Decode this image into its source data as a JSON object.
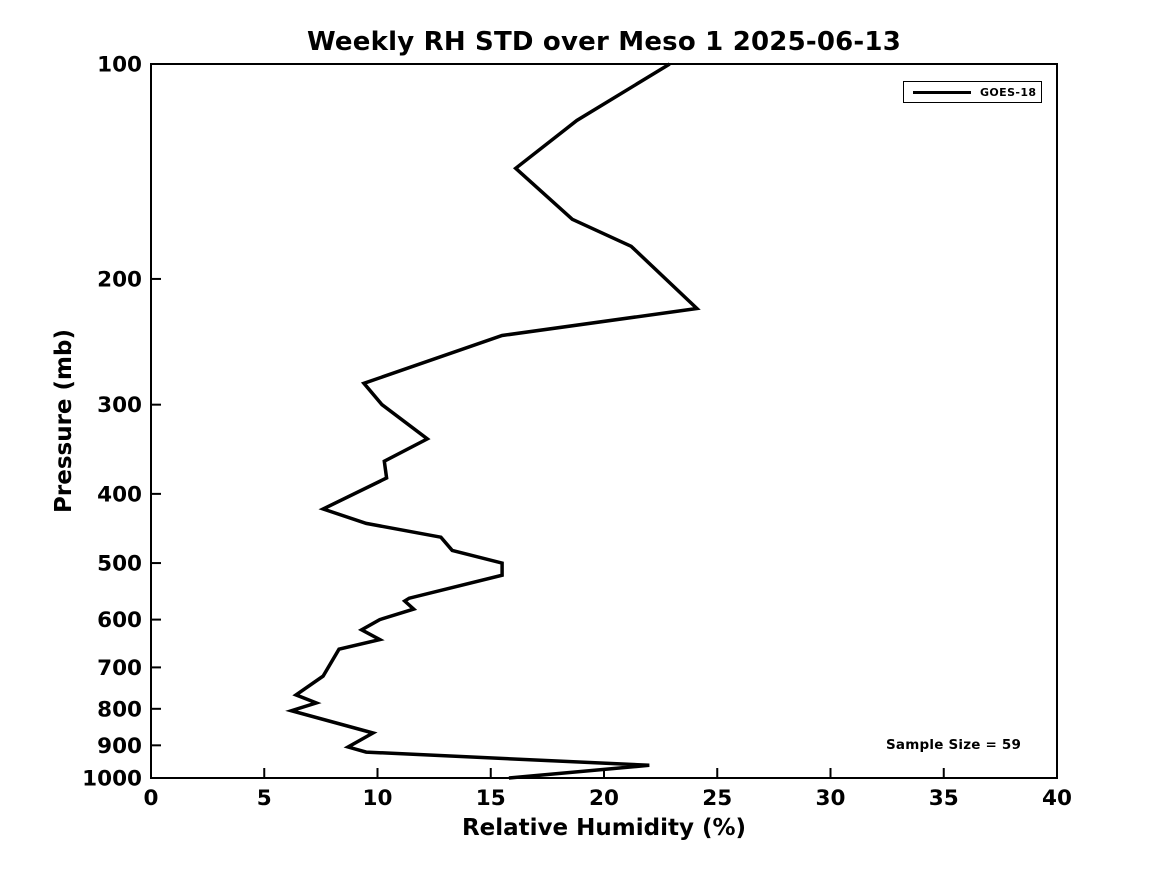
{
  "figure": {
    "background_color": "#ffffff",
    "foreground_color": "#000000"
  },
  "chart_data": {
    "type": "line",
    "title": "Weekly RH STD over Meso 1 2025-06-13",
    "xlabel": "Relative Humidity (%)",
    "ylabel": "Pressure (mb)",
    "x_axis": {
      "min": 0,
      "max": 40,
      "scale": "linear",
      "ticks": [
        0,
        5,
        10,
        15,
        20,
        25,
        30,
        35,
        40
      ],
      "tick_direction": "in"
    },
    "y_axis": {
      "min": 100,
      "max": 1000,
      "scale": "log",
      "inverted": true,
      "ticks": [
        100,
        200,
        300,
        400,
        500,
        600,
        700,
        800,
        900,
        1000
      ],
      "tick_direction": "in"
    },
    "grid": false,
    "box": true,
    "legend": {
      "position": "upper right",
      "entries": [
        {
          "label": "GOES-18",
          "color": "#000000",
          "line_width": 3
        }
      ]
    },
    "annotations": [
      {
        "text": "Sample Size = 59",
        "position": "lower right",
        "approx_data_coords": {
          "rh": 35.2,
          "pressure_mb": 905
        }
      }
    ],
    "series": [
      {
        "name": "GOES-18",
        "color": "#000000",
        "line_width": 3.5,
        "x_units": "percent_rh",
        "y_units": "mb",
        "points": [
          [
            22.9,
            100
          ],
          [
            18.8,
            120
          ],
          [
            16.1,
            140
          ],
          [
            18.6,
            165
          ],
          [
            21.2,
            180
          ],
          [
            24.1,
            220
          ],
          [
            15.5,
            240
          ],
          [
            9.4,
            280
          ],
          [
            10.2,
            300
          ],
          [
            12.2,
            335
          ],
          [
            10.3,
            360
          ],
          [
            10.4,
            380
          ],
          [
            7.6,
            420
          ],
          [
            9.5,
            440
          ],
          [
            12.8,
            460
          ],
          [
            13.3,
            480
          ],
          [
            15.5,
            500
          ],
          [
            15.5,
            520
          ],
          [
            11.4,
            560
          ],
          [
            11.2,
            565
          ],
          [
            11.6,
            580
          ],
          [
            10.1,
            600
          ],
          [
            9.3,
            620
          ],
          [
            10.1,
            640
          ],
          [
            8.3,
            660
          ],
          [
            7.6,
            720
          ],
          [
            6.4,
            765
          ],
          [
            7.3,
            785
          ],
          [
            6.2,
            805
          ],
          [
            9.8,
            865
          ],
          [
            8.7,
            905
          ],
          [
            9.5,
            920
          ],
          [
            22.0,
            960
          ],
          [
            15.8,
            1000
          ]
        ]
      }
    ]
  }
}
